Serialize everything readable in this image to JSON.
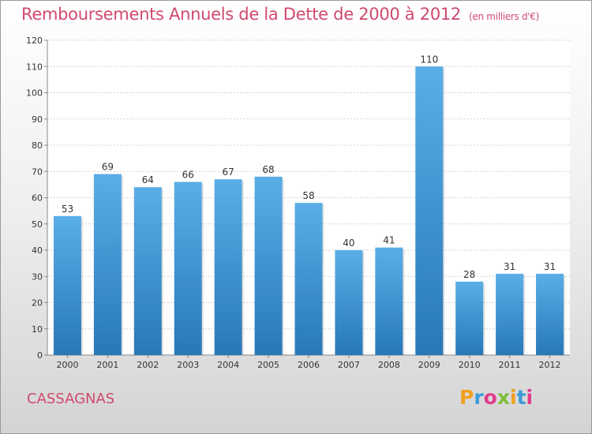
{
  "chart_data": {
    "type": "bar",
    "title": "Remboursements Annuels de la Dette de 2000 à 2012",
    "subtitle": "(en milliers d'€)",
    "categories": [
      "2000",
      "2001",
      "2002",
      "2003",
      "2004",
      "2005",
      "2006",
      "2007",
      "2008",
      "2009",
      "2010",
      "2011",
      "2012"
    ],
    "values": [
      53,
      69,
      64,
      66,
      67,
      68,
      58,
      40,
      41,
      110,
      28,
      31,
      31
    ],
    "ylim": [
      0,
      120
    ],
    "yticks": [
      0,
      10,
      20,
      30,
      40,
      50,
      60,
      70,
      80,
      90,
      100,
      110,
      120
    ],
    "grid": true,
    "bar_color_top": "#5aaee6",
    "bar_color_bottom": "#2878b8"
  },
  "town": "CASSAGNAS",
  "logo": {
    "letters": [
      "P",
      "r",
      "o",
      "x",
      "i",
      "t",
      "i"
    ],
    "colors": [
      "#f0a020",
      "#3a9ad9",
      "#e03c8a",
      "#7cbf3a",
      "#f0a020",
      "#3a9ad9",
      "#e03c8a"
    ]
  }
}
